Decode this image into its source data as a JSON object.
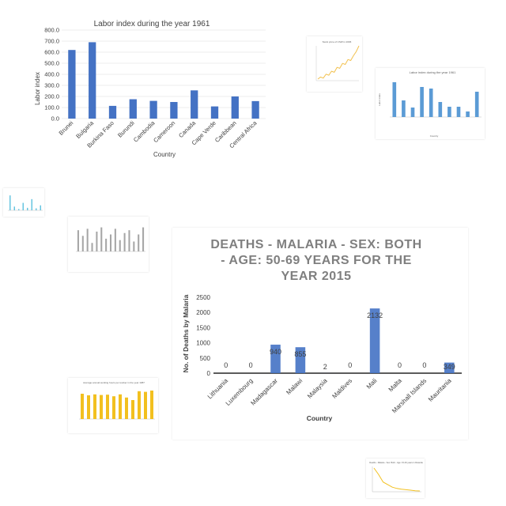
{
  "chart_data": [
    {
      "type": "bar",
      "title": "Labor index during the year 1961",
      "xlabel": "Country",
      "ylabel": "Labor index",
      "categories": [
        "Brunei",
        "Bulgaria",
        "Burkina Faso",
        "Burundi",
        "Cambodia",
        "Cameroon",
        "Canada",
        "Cape Verde",
        "Caribbean",
        "Central Africa"
      ],
      "values": [
        620,
        690,
        115,
        175,
        160,
        150,
        255,
        110,
        200,
        158
      ],
      "ylim": [
        0,
        800
      ],
      "yticks": [
        "0.0",
        "100.0",
        "200.0",
        "300.0",
        "400.0",
        "500.0",
        "600.0",
        "700.0",
        "800.0"
      ],
      "color": "#4472c4",
      "grid": true
    },
    {
      "type": "bar",
      "title": "DEATHS - MALARIA - SEX: BOTH - AGE: 50-69 YEARS FOR THE YEAR 2015",
      "title_lines": [
        "DEATHS - MALARIA - SEX: BOTH",
        "- AGE: 50-69 YEARS FOR THE",
        "YEAR 2015"
      ],
      "xlabel": "Country",
      "ylabel": "No. of Deaths by Malaria",
      "categories": [
        "Lithuania",
        "Luxembourg",
        "Madagascar",
        "Malawi",
        "Malaysia",
        "Maldives",
        "Mali",
        "Malta",
        "Marshall Islands",
        "Mauritania"
      ],
      "values": [
        0,
        0,
        940,
        855,
        2,
        0,
        2132,
        0,
        0,
        349
      ],
      "data_labels": [
        "0",
        "0",
        "940",
        "855",
        "2",
        "0",
        "2132",
        "0",
        "0",
        "349"
      ],
      "ylim": [
        0,
        2500
      ],
      "yticks": [
        "0",
        "500",
        "1000",
        "1500",
        "2000",
        "2500"
      ],
      "color": "#4472c4",
      "grid": false
    },
    {
      "type": "line",
      "title": "Stock price of CSW in 2006",
      "values": [
        10,
        12,
        11,
        15,
        14,
        18,
        17,
        22,
        21,
        26,
        25,
        30,
        29,
        34,
        38,
        44
      ],
      "color": "#f2c14e"
    },
    {
      "type": "bar",
      "title": "Labor index during the year 1961",
      "xlabel": "Country",
      "ylabel": "Labor index",
      "values": [
        220,
        105,
        60,
        190,
        180,
        95,
        65,
        65,
        35,
        160
      ],
      "ylim": [
        0,
        250
      ],
      "color": "#5b9bd5"
    },
    {
      "type": "bar",
      "values": [
        60,
        15,
        5,
        30,
        10,
        45,
        8,
        20
      ],
      "color": "#5bc0de"
    },
    {
      "type": "bar",
      "values": [
        75,
        55,
        80,
        30,
        70,
        85,
        45,
        60,
        80,
        40,
        65,
        75,
        35,
        60,
        85
      ],
      "color": "#a6a6a6"
    },
    {
      "type": "bar",
      "title": "Average annual working hours per worker in the year 1987",
      "values": [
        80,
        75,
        78,
        76,
        77,
        72,
        78,
        68,
        60,
        88,
        86,
        90
      ],
      "color": "#f2c01f"
    },
    {
      "type": "line",
      "title": "Deaths - Malaria - Sex: Both - Age: 15-49 years in Rwanda",
      "values": [
        95,
        70,
        40,
        30,
        20,
        15,
        12,
        10,
        8,
        6,
        5
      ],
      "color": "#f2c01f"
    }
  ]
}
